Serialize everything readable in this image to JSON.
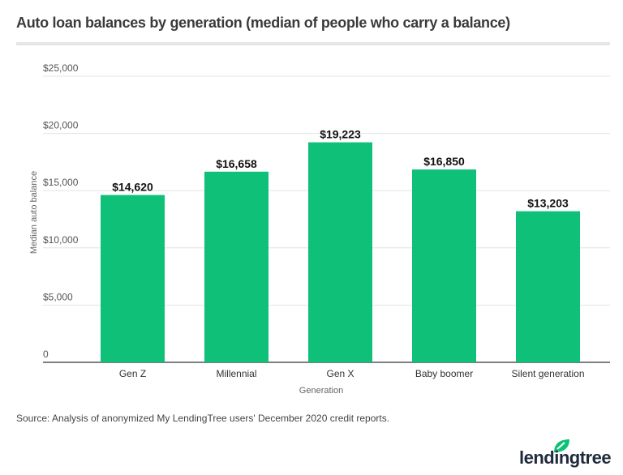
{
  "chart_data": {
    "type": "bar",
    "title": "Auto loan balances by generation (median of people who carry a balance)",
    "xlabel": "Generation",
    "ylabel": "Median auto balance",
    "categories": [
      "Gen Z",
      "Millennial",
      "Gen X",
      "Baby boomer",
      "Silent generation"
    ],
    "values": [
      14620,
      16658,
      19223,
      16850,
      13203
    ],
    "data_labels": [
      "$14,620",
      "$16,658",
      "$19,223",
      "$16,850",
      "$13,203"
    ],
    "ylim": [
      0,
      25000
    ],
    "yticks": [
      0,
      5000,
      10000,
      15000,
      20000,
      25000
    ],
    "ytick_labels": [
      "0",
      "$5,000",
      "$10,000",
      "$15,000",
      "$20,000",
      "$25,000"
    ],
    "grid": true,
    "legend": "none",
    "bar_color": "#0fc178"
  },
  "source": "Source: Analysis of anonymized My LendingTree users' December 2020 credit reports.",
  "logo": {
    "text": "lendingtree",
    "color": "#1f2a3c",
    "leaf_color": "#0fc178"
  }
}
